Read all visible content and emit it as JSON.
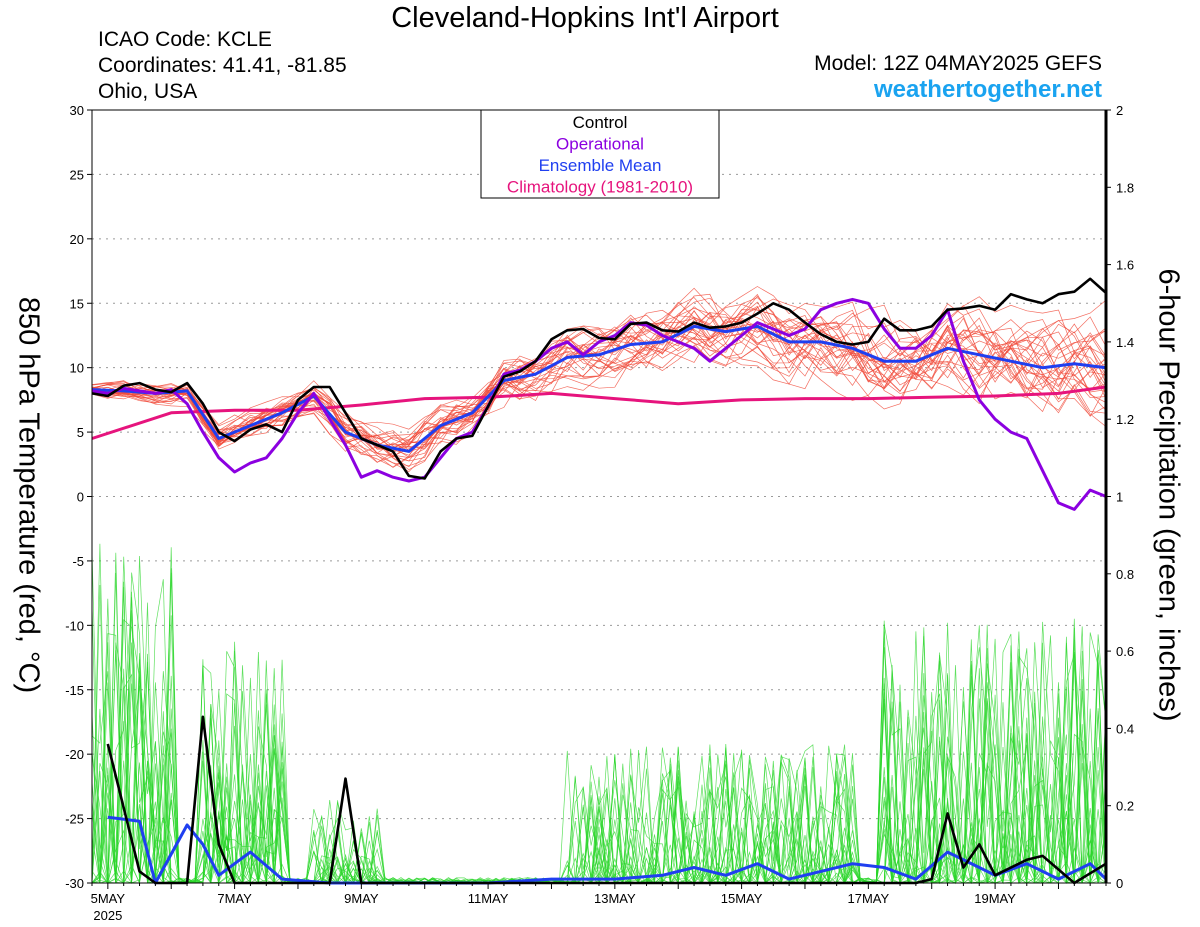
{
  "header": {
    "title": "Cleveland-Hopkins Int'l Airport",
    "icao": "ICAO Code: KCLE",
    "coordinates": "Coordinates: 41.41, -81.85",
    "region": "Ohio, USA",
    "model": "Model: 12Z 04MAY2025 GEFS",
    "website": "weathertogether.net"
  },
  "colors": {
    "control": "#000000",
    "operational": "#8b00e0",
    "ensemble_mean": "#1f3ff0",
    "climatology": "#e6147d",
    "members_temp": "#f04a3a",
    "members_precip": "#2ad52a",
    "website": "#1aa3f0"
  },
  "chart_data": {
    "type": "line",
    "ylabel": "850 hPa Temperature (red, °C)",
    "y2label": "6-hour Precipitation (green, inches)",
    "ylim": [
      -30,
      30
    ],
    "y2lim": [
      0,
      2
    ],
    "yticks": [
      30,
      25,
      20,
      15,
      10,
      5,
      0,
      -5,
      -10,
      -15,
      -20,
      -25,
      -30
    ],
    "y2ticks": [
      "2",
      "1.8",
      "1.6",
      "1.4",
      "1.2",
      "1",
      "0.8",
      "0.6",
      "0.4",
      "0.2",
      "0"
    ],
    "xlim": [
      "2025-05-04T18",
      "2025-05-20T18"
    ],
    "xticks": [
      "5MAY",
      "7MAY",
      "9MAY",
      "11MAY",
      "13MAY",
      "15MAY",
      "17MAY",
      "19MAY"
    ],
    "xtick_year": "2025",
    "grid": true,
    "legend_position": "top-center",
    "legend": [
      "Control",
      "Operational",
      "Ensemble Mean",
      "Climatology (1981-2010)"
    ],
    "series": [
      {
        "name": "Control",
        "axis": "left",
        "x": [
          "2025-05-04T18",
          "2025-05-05T00",
          "2025-05-05T06",
          "2025-05-05T12",
          "2025-05-05T18",
          "2025-05-06T00",
          "2025-05-06T06",
          "2025-05-06T12",
          "2025-05-06T18",
          "2025-05-07T00",
          "2025-05-07T06",
          "2025-05-07T12",
          "2025-05-07T18",
          "2025-05-08T00",
          "2025-05-08T06",
          "2025-05-08T12",
          "2025-05-08T18",
          "2025-05-09T00",
          "2025-05-09T06",
          "2025-05-09T12",
          "2025-05-09T18",
          "2025-05-10T00",
          "2025-05-10T06",
          "2025-05-10T12",
          "2025-05-10T18",
          "2025-05-11T00",
          "2025-05-11T06",
          "2025-05-11T12",
          "2025-05-11T18",
          "2025-05-12T00",
          "2025-05-12T06",
          "2025-05-12T12",
          "2025-05-12T18",
          "2025-05-13T00",
          "2025-05-13T06",
          "2025-05-13T12",
          "2025-05-13T18",
          "2025-05-14T00",
          "2025-05-14T06",
          "2025-05-14T12",
          "2025-05-14T18",
          "2025-05-15T00",
          "2025-05-15T06",
          "2025-05-15T12",
          "2025-05-15T18",
          "2025-05-16T00",
          "2025-05-16T06",
          "2025-05-16T12",
          "2025-05-16T18",
          "2025-05-17T00",
          "2025-05-17T06",
          "2025-05-17T12",
          "2025-05-17T18",
          "2025-05-18T00",
          "2025-05-18T06",
          "2025-05-18T12",
          "2025-05-18T18",
          "2025-05-19T00",
          "2025-05-19T06",
          "2025-05-19T12",
          "2025-05-19T18",
          "2025-05-20T00",
          "2025-05-20T06",
          "2025-05-20T12",
          "2025-05-20T18"
        ],
        "y": [
          8.0,
          7.8,
          8.6,
          8.8,
          8.3,
          8.1,
          8.8,
          7.2,
          5.0,
          4.3,
          5.2,
          5.6,
          5.0,
          7.5,
          8.5,
          8.5,
          6.5,
          4.5,
          4.0,
          3.5,
          1.6,
          1.4,
          3.5,
          4.5,
          4.7,
          7.0,
          9.3,
          9.7,
          10.5,
          12.2,
          12.9,
          13.0,
          12.3,
          12.2,
          13.4,
          13.5,
          12.9,
          12.8,
          13.5,
          13.1,
          13.2,
          13.5,
          14.2,
          15.0,
          14.5,
          13.5,
          12.6,
          12.0,
          11.8,
          12.0,
          13.8,
          12.9,
          12.9,
          13.2,
          14.5,
          14.6,
          14.8,
          14.5,
          15.7,
          15.3,
          15.0,
          15.7,
          15.9,
          16.9,
          15.8
        ]
      },
      {
        "name": "Operational",
        "axis": "left",
        "x": [
          "2025-05-04T18",
          "2025-05-05T00",
          "2025-05-05T06",
          "2025-05-05T12",
          "2025-05-05T18",
          "2025-05-06T00",
          "2025-05-06T06",
          "2025-05-06T12",
          "2025-05-06T18",
          "2025-05-07T00",
          "2025-05-07T06",
          "2025-05-07T12",
          "2025-05-07T18",
          "2025-05-08T00",
          "2025-05-08T06",
          "2025-05-08T12",
          "2025-05-08T18",
          "2025-05-09T00",
          "2025-05-09T06",
          "2025-05-09T12",
          "2025-05-09T18",
          "2025-05-10T00",
          "2025-05-10T06",
          "2025-05-10T12",
          "2025-05-10T18",
          "2025-05-11T00",
          "2025-05-11T06",
          "2025-05-11T12",
          "2025-05-11T18",
          "2025-05-12T00",
          "2025-05-12T06",
          "2025-05-12T12",
          "2025-05-12T18",
          "2025-05-13T00",
          "2025-05-13T06",
          "2025-05-13T12",
          "2025-05-13T18",
          "2025-05-14T00",
          "2025-05-14T06",
          "2025-05-14T12",
          "2025-05-14T18",
          "2025-05-15T00",
          "2025-05-15T06",
          "2025-05-15T12",
          "2025-05-15T18",
          "2025-05-16T00",
          "2025-05-16T06",
          "2025-05-16T12",
          "2025-05-16T18",
          "2025-05-17T00",
          "2025-05-17T06",
          "2025-05-17T12",
          "2025-05-17T18",
          "2025-05-18T00",
          "2025-05-18T06",
          "2025-05-18T12",
          "2025-05-18T18",
          "2025-05-19T00",
          "2025-05-19T06",
          "2025-05-19T12",
          "2025-05-19T18",
          "2025-05-20T00",
          "2025-05-20T06",
          "2025-05-20T12",
          "2025-05-20T18"
        ],
        "y": [
          8.2,
          8.0,
          8.4,
          8.2,
          8.0,
          8.3,
          7.2,
          5.0,
          3.0,
          1.9,
          2.6,
          3.0,
          4.5,
          6.5,
          8.0,
          6.0,
          4.0,
          1.5,
          2.0,
          1.5,
          1.2,
          1.5,
          3.0,
          4.5,
          5.0,
          7.0,
          9.5,
          9.8,
          10.5,
          11.5,
          12.0,
          11.0,
          12.0,
          12.5,
          13.5,
          13.3,
          12.5,
          12.0,
          11.5,
          10.5,
          11.5,
          12.5,
          13.5,
          13.0,
          12.5,
          13.0,
          14.5,
          15.0,
          15.3,
          15.0,
          13.0,
          11.5,
          11.5,
          12.5,
          14.5,
          10.5,
          7.5,
          6.0,
          5.0,
          4.5,
          2.0,
          -0.5,
          -1.0,
          0.5,
          0.0
        ]
      },
      {
        "name": "Ensemble Mean",
        "axis": "left",
        "x": [
          "2025-05-04T18",
          "2025-05-05T06",
          "2025-05-05T18",
          "2025-05-06T06",
          "2025-05-06T18",
          "2025-05-07T06",
          "2025-05-07T18",
          "2025-05-08T06",
          "2025-05-08T18",
          "2025-05-09T06",
          "2025-05-09T18",
          "2025-05-10T06",
          "2025-05-10T18",
          "2025-05-11T06",
          "2025-05-11T18",
          "2025-05-12T06",
          "2025-05-12T18",
          "2025-05-13T06",
          "2025-05-13T18",
          "2025-05-14T06",
          "2025-05-14T18",
          "2025-05-15T06",
          "2025-05-15T18",
          "2025-05-16T06",
          "2025-05-16T18",
          "2025-05-17T06",
          "2025-05-17T18",
          "2025-05-18T06",
          "2025-05-18T18",
          "2025-05-19T06",
          "2025-05-19T18",
          "2025-05-20T06",
          "2025-05-20T18"
        ],
        "y": [
          8.3,
          8.2,
          8.0,
          8.2,
          4.5,
          5.5,
          6.5,
          7.8,
          5.0,
          4.0,
          3.5,
          5.5,
          6.5,
          9.0,
          9.5,
          10.8,
          11.0,
          11.8,
          12.0,
          13.2,
          12.8,
          13.2,
          12.0,
          12.0,
          11.5,
          10.5,
          10.5,
          11.5,
          11.0,
          10.5,
          10.0,
          10.3,
          10.0
        ]
      },
      {
        "name": "Climatology (1981-2010)",
        "axis": "left",
        "x": [
          "2025-05-04T18",
          "2025-05-06T00",
          "2025-05-07T00",
          "2025-05-08T00",
          "2025-05-09T00",
          "2025-05-10T00",
          "2025-05-11T00",
          "2025-05-12T00",
          "2025-05-13T00",
          "2025-05-14T00",
          "2025-05-15T00",
          "2025-05-16T00",
          "2025-05-17T00",
          "2025-05-18T00",
          "2025-05-19T00",
          "2025-05-20T00",
          "2025-05-20T18"
        ],
        "y": [
          4.5,
          6.5,
          6.7,
          6.7,
          7.1,
          7.6,
          7.7,
          8.0,
          7.6,
          7.2,
          7.5,
          7.6,
          7.6,
          7.7,
          7.8,
          8.0,
          8.5
        ]
      },
      {
        "name": "Control precipitation",
        "axis": "right",
        "x": [
          "2025-05-05T00",
          "2025-05-05T12",
          "2025-05-05T18",
          "2025-05-06T06",
          "2025-05-06T12",
          "2025-05-06T18",
          "2025-05-07T00",
          "2025-05-08T12",
          "2025-05-08T18",
          "2025-05-09T00",
          "2025-05-13T18",
          "2025-05-14T18",
          "2025-05-17T18",
          "2025-05-18T00",
          "2025-05-18T06",
          "2025-05-18T12",
          "2025-05-18T18",
          "2025-05-19T00",
          "2025-05-19T12",
          "2025-05-19T18",
          "2025-05-20T06",
          "2025-05-20T18"
        ],
        "y": [
          0.36,
          0.03,
          0.0,
          0.0,
          0.43,
          0.1,
          0.0,
          0.0,
          0.27,
          0.0,
          0.0,
          0.0,
          0.0,
          0.01,
          0.18,
          0.04,
          0.1,
          0.02,
          0.06,
          0.07,
          0.0,
          0.05
        ]
      },
      {
        "name": "Ensemble Mean precipitation",
        "axis": "right",
        "x": [
          "2025-05-05T00",
          "2025-05-05T12",
          "2025-05-05T18",
          "2025-05-06T06",
          "2025-05-06T12",
          "2025-05-06T18",
          "2025-05-07T06",
          "2025-05-07T18",
          "2025-05-08T12",
          "2025-05-09T06",
          "2025-05-11T00",
          "2025-05-12T00",
          "2025-05-13T00",
          "2025-05-13T18",
          "2025-05-14T06",
          "2025-05-14T18",
          "2025-05-15T06",
          "2025-05-15T18",
          "2025-05-16T06",
          "2025-05-16T18",
          "2025-05-17T06",
          "2025-05-17T18",
          "2025-05-18T06",
          "2025-05-18T18",
          "2025-05-19T00",
          "2025-05-19T12",
          "2025-05-20T00",
          "2025-05-20T12",
          "2025-05-20T18"
        ],
        "y": [
          0.17,
          0.16,
          0.0,
          0.15,
          0.1,
          0.02,
          0.08,
          0.01,
          0.0,
          0.0,
          0.0,
          0.01,
          0.01,
          0.02,
          0.04,
          0.02,
          0.05,
          0.01,
          0.03,
          0.05,
          0.04,
          0.01,
          0.08,
          0.04,
          0.02,
          0.05,
          0.01,
          0.05,
          0.01
        ]
      }
    ]
  }
}
